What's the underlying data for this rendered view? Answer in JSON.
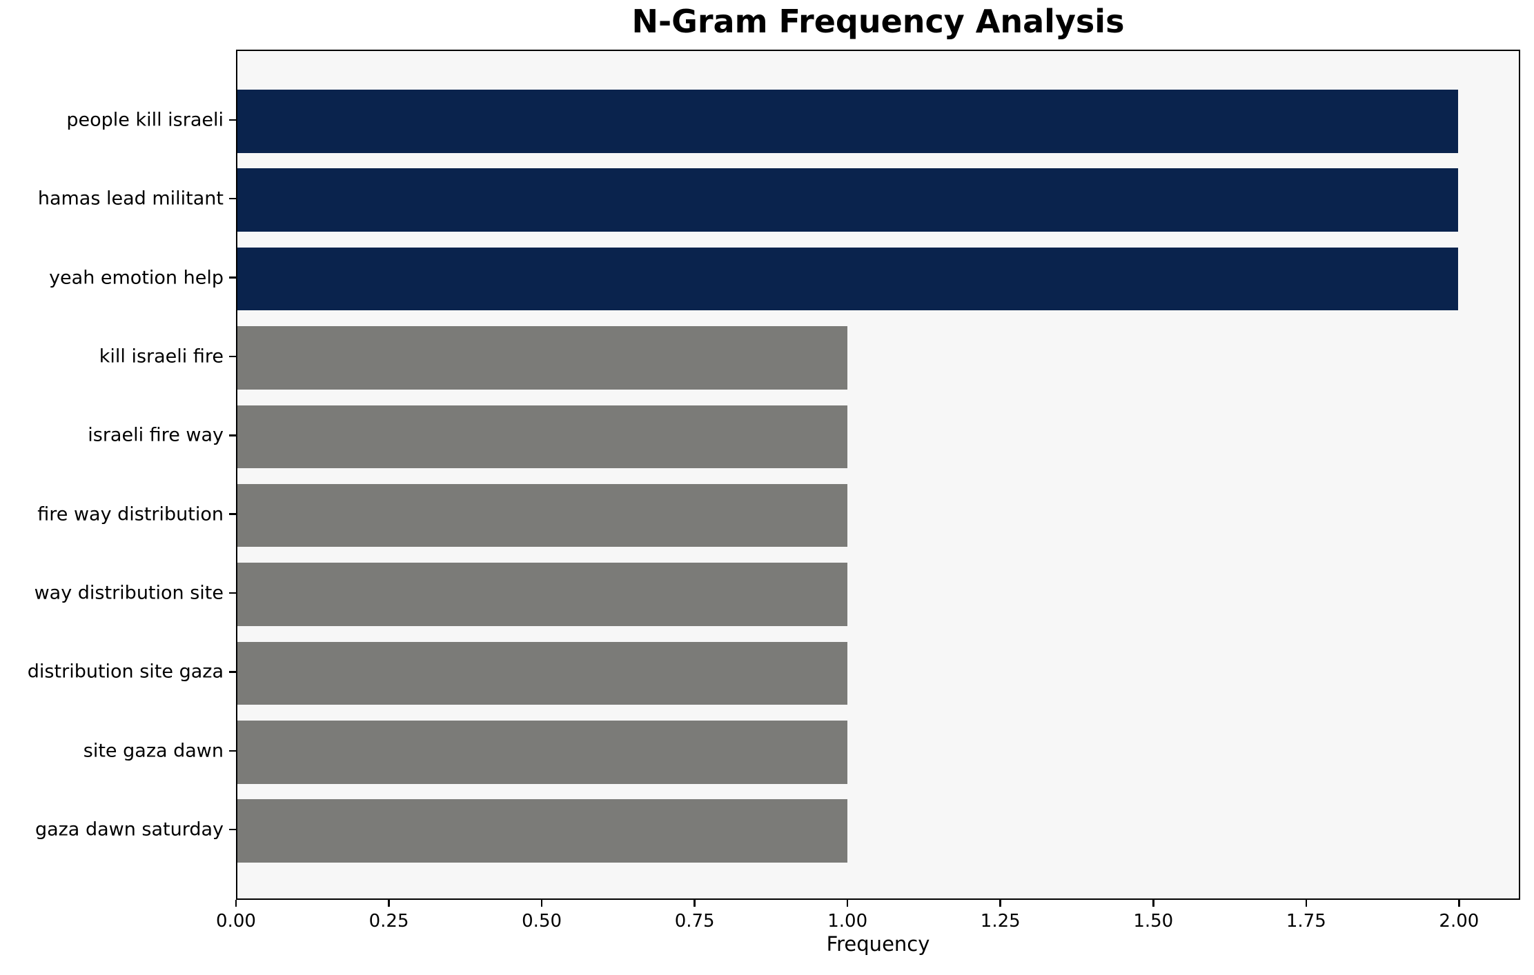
{
  "figure": {
    "background_color": "#ffffff",
    "plot_background_color": "#f7f7f7",
    "spine_color": "#000000"
  },
  "chart_data": {
    "type": "bar",
    "orientation": "horizontal",
    "title": "N-Gram Frequency Analysis",
    "xlabel": "Frequency",
    "ylabel": "",
    "categories": [
      "people kill israeli",
      "hamas lead militant",
      "yeah emotion help",
      "kill israeli fire",
      "israeli fire way",
      "fire way distribution",
      "way distribution site",
      "distribution site gaza",
      "site gaza dawn",
      "gaza dawn saturday"
    ],
    "values": [
      2,
      2,
      2,
      1,
      1,
      1,
      1,
      1,
      1,
      1
    ],
    "bar_colors": [
      "#0a234d",
      "#0a234d",
      "#0a234d",
      "#7b7b78",
      "#7b7b78",
      "#7b7b78",
      "#7b7b78",
      "#7b7b78",
      "#7b7b78",
      "#7b7b78"
    ],
    "color_legend": {
      "frequency_2": "#0a234d",
      "frequency_1": "#7b7b78"
    },
    "xlim": [
      0,
      2.1
    ],
    "xticks": [
      {
        "value": 0.0,
        "label": "0.00"
      },
      {
        "value": 0.25,
        "label": "0.25"
      },
      {
        "value": 0.5,
        "label": "0.50"
      },
      {
        "value": 0.75,
        "label": "0.75"
      },
      {
        "value": 1.0,
        "label": "1.00"
      },
      {
        "value": 1.25,
        "label": "1.25"
      },
      {
        "value": 1.5,
        "label": "1.50"
      },
      {
        "value": 1.75,
        "label": "1.75"
      },
      {
        "value": 2.0,
        "label": "2.00"
      }
    ],
    "bar_height_fraction": 0.8,
    "grid": false,
    "legend_position": "none"
  }
}
